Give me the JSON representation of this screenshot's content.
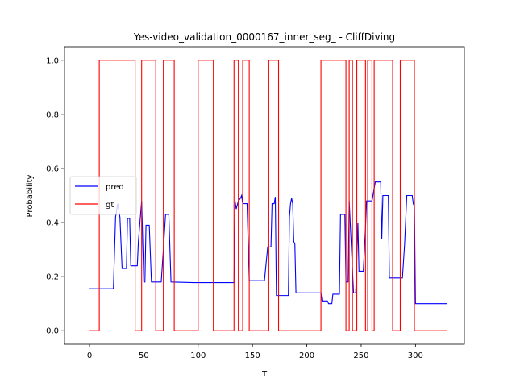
{
  "chart_data": {
    "type": "line",
    "title": "Yes-video_validation_0000167_inner_seg_ - CliffDiving",
    "xlabel": "T",
    "ylabel": "Probability",
    "xlim": [
      -23,
      345
    ],
    "ylim": [
      -0.05,
      1.05
    ],
    "xticks": [
      0,
      50,
      100,
      150,
      200,
      250,
      300
    ],
    "yticks": [
      0.0,
      0.2,
      0.4,
      0.6,
      0.8,
      1.0
    ],
    "xtick_labels": [
      "0",
      "50",
      "100",
      "150",
      "200",
      "250",
      "300"
    ],
    "ytick_labels": [
      "0.0",
      "0.2",
      "0.4",
      "0.6",
      "0.8",
      "1.0"
    ],
    "grid": false,
    "legend_position": "center-left",
    "series": [
      {
        "name": "pred",
        "color": "#0000ff",
        "points": [
          [
            0,
            0.155
          ],
          [
            22,
            0.155
          ],
          [
            24,
            0.42
          ],
          [
            26,
            0.47
          ],
          [
            28,
            0.42
          ],
          [
            30,
            0.23
          ],
          [
            34,
            0.23
          ],
          [
            35,
            0.415
          ],
          [
            37,
            0.415
          ],
          [
            38,
            0.24
          ],
          [
            44,
            0.24
          ],
          [
            45,
            0.33
          ],
          [
            48,
            0.48
          ],
          [
            50,
            0.18
          ],
          [
            51,
            0.18
          ],
          [
            52,
            0.39
          ],
          [
            55,
            0.39
          ],
          [
            57,
            0.18
          ],
          [
            66,
            0.18
          ],
          [
            68,
            0.3
          ],
          [
            70,
            0.43
          ],
          [
            73,
            0.43
          ],
          [
            75,
            0.18
          ],
          [
            96,
            0.178
          ],
          [
            133,
            0.178
          ],
          [
            134,
            0.48
          ],
          [
            135,
            0.45
          ],
          [
            137,
            0.48
          ],
          [
            139,
            0.49
          ],
          [
            140,
            0.5
          ],
          [
            141,
            0.47
          ],
          [
            145,
            0.47
          ],
          [
            147,
            0.185
          ],
          [
            161,
            0.185
          ],
          [
            164,
            0.31
          ],
          [
            167,
            0.31
          ],
          [
            168,
            0.47
          ],
          [
            170,
            0.47
          ],
          [
            171,
            0.495
          ],
          [
            172,
            0.13
          ],
          [
            183,
            0.13
          ],
          [
            184,
            0.42
          ],
          [
            185,
            0.47
          ],
          [
            186,
            0.49
          ],
          [
            187,
            0.47
          ],
          [
            188,
            0.33
          ],
          [
            189,
            0.32
          ],
          [
            190,
            0.14
          ],
          [
            213,
            0.14
          ],
          [
            214,
            0.11
          ],
          [
            219,
            0.11
          ],
          [
            220,
            0.1
          ],
          [
            223,
            0.1
          ],
          [
            224,
            0.135
          ],
          [
            230,
            0.135
          ],
          [
            231,
            0.43
          ],
          [
            235,
            0.43
          ],
          [
            236,
            0.18
          ],
          [
            238,
            0.18
          ],
          [
            239,
            0.48
          ],
          [
            243,
            0.14
          ],
          [
            245,
            0.14
          ],
          [
            246,
            0.27
          ],
          [
            247,
            0.4
          ],
          [
            248,
            0.22
          ],
          [
            252,
            0.22
          ],
          [
            254,
            0.38
          ],
          [
            255,
            0.48
          ],
          [
            260,
            0.48
          ],
          [
            263,
            0.55
          ],
          [
            268,
            0.55
          ],
          [
            269,
            0.34
          ],
          [
            270,
            0.5
          ],
          [
            275,
            0.5
          ],
          [
            276,
            0.195
          ],
          [
            288,
            0.195
          ],
          [
            290,
            0.32
          ],
          [
            292,
            0.5
          ],
          [
            297,
            0.5
          ],
          [
            298,
            0.47
          ],
          [
            299,
            0.48
          ],
          [
            300,
            0.1
          ],
          [
            329,
            0.1
          ]
        ]
      },
      {
        "name": "gt",
        "color": "#ff0000",
        "step": true,
        "points": [
          [
            0,
            0
          ],
          [
            9,
            0
          ],
          [
            9,
            1
          ],
          [
            42,
            1
          ],
          [
            42,
            0
          ],
          [
            48,
            0
          ],
          [
            48,
            1
          ],
          [
            61,
            1
          ],
          [
            61,
            0
          ],
          [
            68,
            0
          ],
          [
            68,
            1
          ],
          [
            78,
            1
          ],
          [
            78,
            0
          ],
          [
            100,
            0
          ],
          [
            100,
            1
          ],
          [
            114,
            1
          ],
          [
            114,
            0
          ],
          [
            133,
            0
          ],
          [
            133,
            1
          ],
          [
            137,
            1
          ],
          [
            137,
            0
          ],
          [
            141,
            0
          ],
          [
            141,
            1
          ],
          [
            147,
            1
          ],
          [
            147,
            0
          ],
          [
            165,
            0
          ],
          [
            165,
            1
          ],
          [
            174,
            1
          ],
          [
            174,
            0
          ],
          [
            213,
            0
          ],
          [
            213,
            1
          ],
          [
            236,
            1
          ],
          [
            236,
            0
          ],
          [
            239,
            0
          ],
          [
            239,
            1
          ],
          [
            242,
            1
          ],
          [
            242,
            0
          ],
          [
            246,
            0
          ],
          [
            246,
            1
          ],
          [
            254,
            1
          ],
          [
            254,
            0
          ],
          [
            256,
            0
          ],
          [
            256,
            1
          ],
          [
            260,
            1
          ],
          [
            260,
            0
          ],
          [
            262,
            0
          ],
          [
            262,
            1
          ],
          [
            279,
            1
          ],
          [
            279,
            0
          ],
          [
            286,
            0
          ],
          [
            286,
            1
          ],
          [
            299,
            1
          ],
          [
            299,
            0
          ],
          [
            329,
            0
          ]
        ]
      }
    ]
  }
}
